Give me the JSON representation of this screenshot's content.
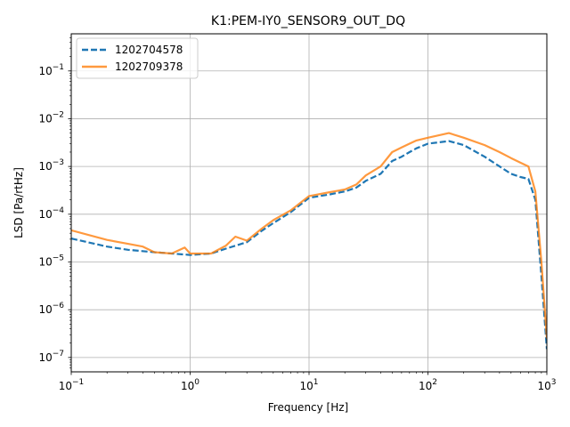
{
  "chart_data": {
    "type": "line",
    "title": "K1:PEM-IY0_SENSOR9_OUT_DQ",
    "xlabel": "Frequency [Hz]",
    "ylabel": "LSD [Pa/rtHz]",
    "xscale": "log",
    "yscale": "log",
    "xlim": [
      0.1,
      1000
    ],
    "ylim": [
      5e-08,
      0.6
    ],
    "grid": true,
    "legend_position": "top-left",
    "x_ticks": [
      {
        "value": 0.1,
        "base": "10",
        "exp": "−1"
      },
      {
        "value": 1,
        "base": "10",
        "exp": "0"
      },
      {
        "value": 10,
        "base": "10",
        "exp": "1"
      },
      {
        "value": 100,
        "base": "10",
        "exp": "2"
      },
      {
        "value": 1000,
        "base": "10",
        "exp": "3"
      }
    ],
    "y_ticks": [
      {
        "value": 1e-07,
        "base": "10",
        "exp": "−7"
      },
      {
        "value": 1e-06,
        "base": "10",
        "exp": "−6"
      },
      {
        "value": 1e-05,
        "base": "10",
        "exp": "−5"
      },
      {
        "value": 0.0001,
        "base": "10",
        "exp": "−4"
      },
      {
        "value": 0.001,
        "base": "10",
        "exp": "−3"
      },
      {
        "value": 0.01,
        "base": "10",
        "exp": "−2"
      },
      {
        "value": 0.1,
        "base": "10",
        "exp": "−1"
      }
    ],
    "series": [
      {
        "name": "1202704578",
        "color": "#1f77b4",
        "linestyle": "dashed",
        "x": [
          0.1,
          0.2,
          0.3,
          0.5,
          0.7,
          1.0,
          1.5,
          2.0,
          3.0,
          4.0,
          5.0,
          7.0,
          10,
          15,
          20,
          25,
          30,
          40,
          50,
          60,
          70,
          80,
          100,
          150,
          200,
          300,
          400,
          500,
          600,
          700,
          800,
          900,
          1000
        ],
        "y": [
          3.1e-05,
          2.1e-05,
          1.8e-05,
          1.6e-05,
          1.5e-05,
          1.4e-05,
          1.5e-05,
          1.9e-05,
          2.6e-05,
          4.5e-05,
          6.5e-05,
          0.00011,
          0.00022,
          0.00026,
          0.0003,
          0.00036,
          0.0005,
          0.0007,
          0.0013,
          0.0016,
          0.002,
          0.0024,
          0.003,
          0.0034,
          0.0028,
          0.0016,
          0.001,
          0.0007,
          0.0006,
          0.00055,
          0.0002,
          5e-06,
          1.5e-07
        ]
      },
      {
        "name": "1202709378",
        "color": "#ff7f0e",
        "linestyle": "solid",
        "x": [
          0.1,
          0.2,
          0.3,
          0.4,
          0.5,
          0.7,
          0.9,
          1.0,
          1.5,
          2.0,
          2.4,
          3.0,
          4.0,
          5.0,
          7.0,
          10,
          15,
          20,
          25,
          30,
          40,
          50,
          60,
          70,
          80,
          100,
          150,
          200,
          300,
          400,
          500,
          600,
          700,
          800,
          900,
          1000
        ],
        "y": [
          4.6e-05,
          2.9e-05,
          2.4e-05,
          2.1e-05,
          1.6e-05,
          1.5e-05,
          2e-05,
          1.5e-05,
          1.5e-05,
          2.2e-05,
          3.4e-05,
          2.8e-05,
          5e-05,
          7.5e-05,
          0.00012,
          0.00024,
          0.00029,
          0.00033,
          0.00042,
          0.00065,
          0.001,
          0.002,
          0.0025,
          0.003,
          0.0035,
          0.004,
          0.005,
          0.004,
          0.0028,
          0.002,
          0.0015,
          0.0012,
          0.001,
          0.0003,
          1e-05,
          2.5e-07
        ]
      }
    ]
  }
}
